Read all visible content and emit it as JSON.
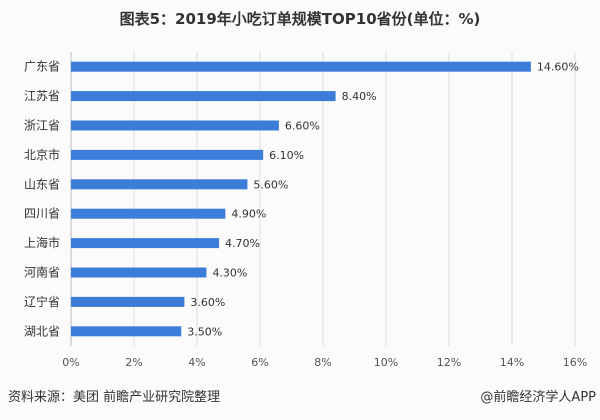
{
  "chart_data": {
    "type": "bar",
    "orientation": "horizontal",
    "title": "图表5：2019年小吃订单规模TOP10省份(单位：%)",
    "categories": [
      "广东省",
      "江苏省",
      "浙江省",
      "北京市",
      "山东省",
      "四川省",
      "上海市",
      "河南省",
      "辽宁省",
      "湖北省"
    ],
    "values": [
      14.6,
      8.4,
      6.6,
      6.1,
      5.6,
      4.9,
      4.7,
      4.3,
      3.6,
      3.5
    ],
    "data_labels": [
      "14.60%",
      "8.40%",
      "6.60%",
      "6.10%",
      "5.60%",
      "4.90%",
      "4.70%",
      "4.30%",
      "3.60%",
      "3.50%"
    ],
    "x_ticks": [
      "0%",
      "2%",
      "4%",
      "6%",
      "8%",
      "10%",
      "12%",
      "14%",
      "16%"
    ],
    "xlim": [
      0,
      16
    ],
    "grid": "vertical",
    "bar_color": "#3b7dd8"
  },
  "footer": {
    "source": "资料来源：美团 前瞻产业研究院整理",
    "credit": "@前瞻经济学人APP"
  }
}
